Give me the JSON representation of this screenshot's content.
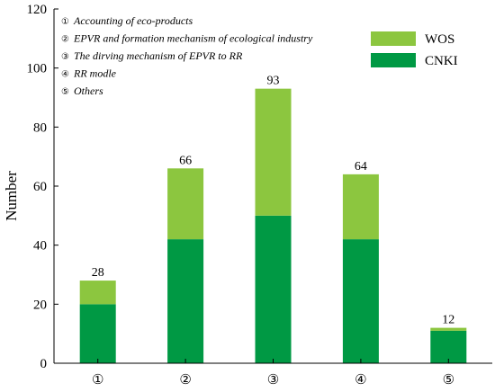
{
  "chart_data": {
    "type": "bar",
    "stacked": true,
    "categories": [
      "①",
      "②",
      "③",
      "④",
      "⑤"
    ],
    "series": [
      {
        "name": "CNKI",
        "values": [
          20,
          42,
          50,
          42,
          11
        ],
        "color": "#009944"
      },
      {
        "name": "WOS",
        "values": [
          8,
          24,
          43,
          22,
          1
        ],
        "color": "#8cc63f"
      }
    ],
    "totals": [
      "28",
      "66",
      "93",
      "64",
      "12"
    ],
    "ylabel": "Number",
    "xlabel": "",
    "ylim": [
      0,
      120
    ],
    "yticks": [
      "0",
      "20",
      "40",
      "60",
      "80",
      "100",
      "120"
    ],
    "legend_position": "top-right",
    "annotations": [
      {
        "num": "①",
        "text": "Accounting of eco-products"
      },
      {
        "num": "②",
        "text": "EPVR and formation mechanism of ecological industry"
      },
      {
        "num": "③",
        "text": "The dirving mechanism of EPVR to RR"
      },
      {
        "num": "④",
        "text": "RR modle"
      },
      {
        "num": "⑤",
        "text": "Others"
      }
    ]
  }
}
